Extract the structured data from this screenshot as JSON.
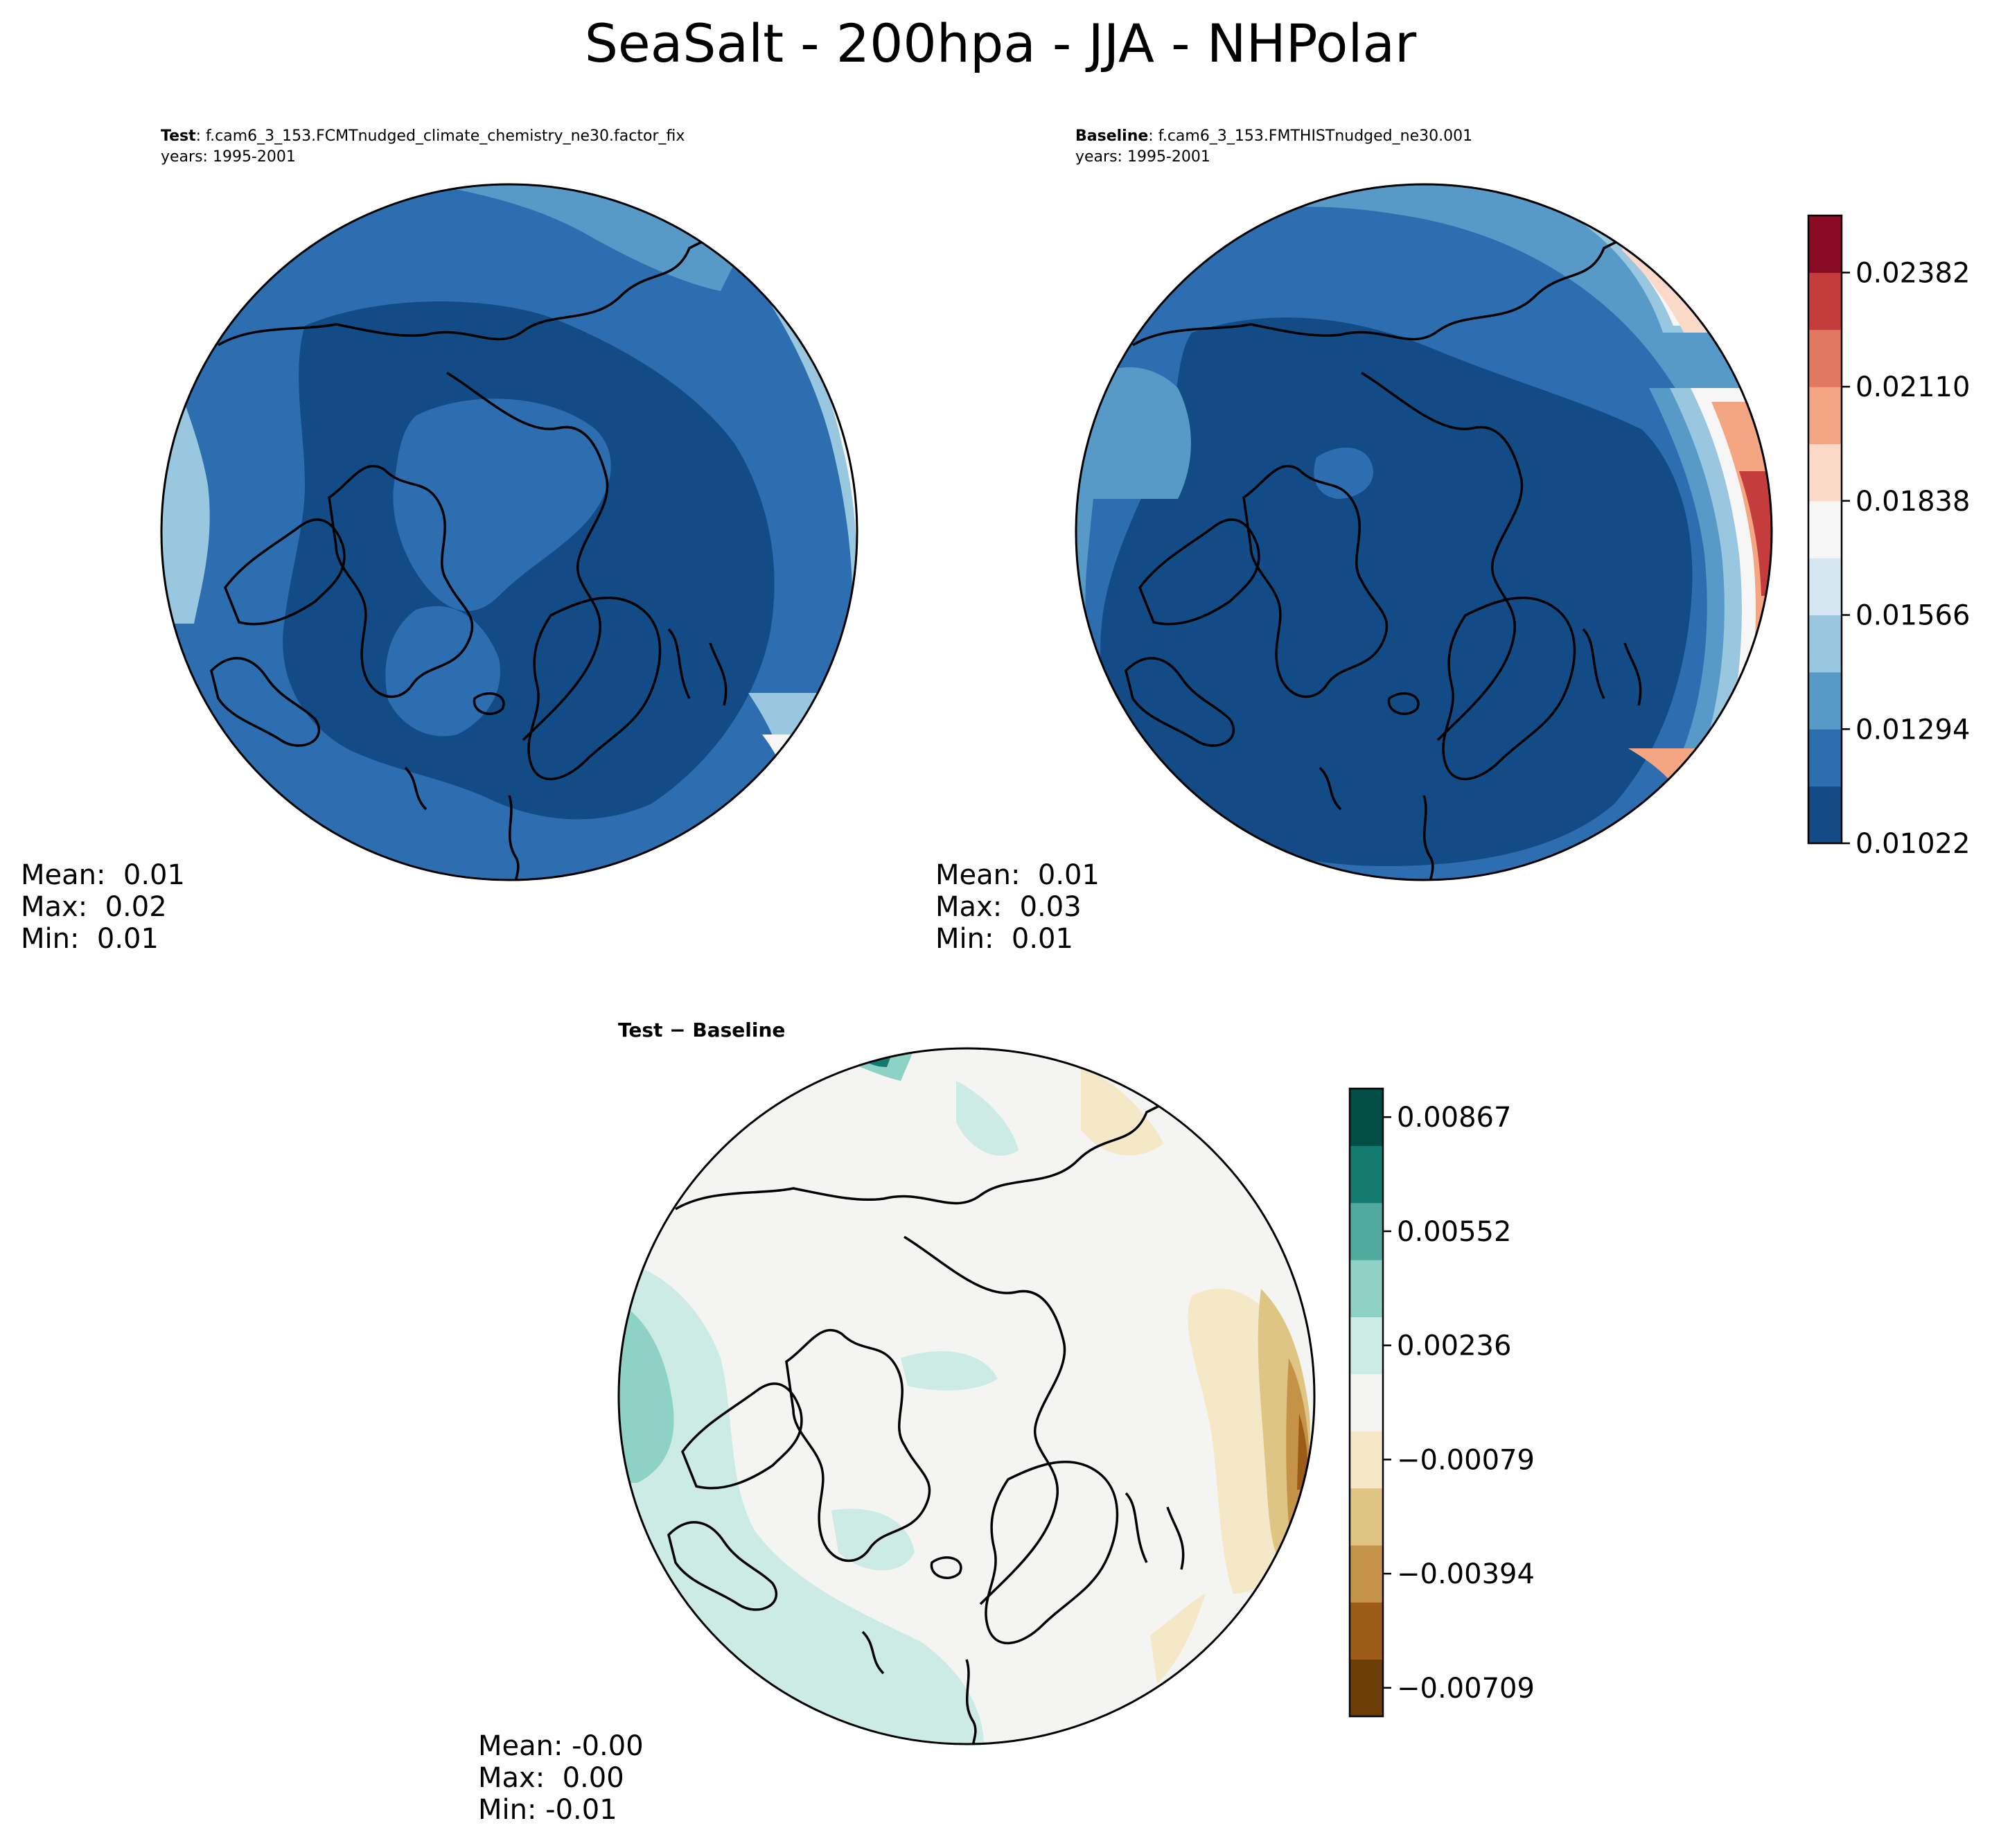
{
  "figure": {
    "title": "SeaSalt - 200hpa - JJA - NHPolar"
  },
  "panels": {
    "test": {
      "label": "Test",
      "case": ": f.cam6_3_153.FCMTnudged_climate_chemistry_ne30.factor_fix",
      "years": "years: 1995-2001",
      "stats": {
        "mean": "Mean:  0.01",
        "max": "Max:  0.02",
        "min": "Min:  0.01"
      }
    },
    "baseline": {
      "label": "Baseline",
      "case": ": f.cam6_3_153.FMTHISTnudged_ne30.001",
      "years": "years: 1995-2001",
      "stats": {
        "mean": "Mean:  0.01",
        "max": "Max:  0.03",
        "min": "Min:  0.01"
      }
    },
    "diff": {
      "label": "Test − Baseline",
      "stats": {
        "mean": "Mean: -0.00",
        "max": "Max:  0.00",
        "min": "Min: -0.01"
      }
    }
  },
  "colorbars": {
    "main": {
      "ticks": [
        "0.01022",
        "0.01294",
        "0.01566",
        "0.01838",
        "0.02110",
        "0.02382"
      ],
      "colors": [
        "#134b87",
        "#2c6eb0",
        "#5799c7",
        "#99c7e0",
        "#d6e7f1",
        "#f6f6f6",
        "#fbd9c9",
        "#f4a582",
        "#e17860",
        "#c53c3d",
        "#8a0b25"
      ]
    },
    "diff": {
      "ticks": [
        "−0.00709",
        "−0.00394",
        "−0.00079",
        "0.00236",
        "0.00552",
        "0.00867"
      ],
      "colors": [
        "#6c3d07",
        "#9c5c17",
        "#c49347",
        "#dfc583",
        "#f4e8c6",
        "#f4f4f3",
        "#cbebe4",
        "#8ed2c5",
        "#4fa99e",
        "#137a70",
        "#024e44"
      ]
    }
  },
  "chart_data": [
    {
      "type": "heatmap",
      "title": "Test: f.cam6_3_153.FCMTnudged_climate_chemistry_ne30.factor_fix",
      "projection": "north polar stereographic",
      "colorbar_range": [
        0.01022,
        0.02518
      ],
      "stats": {
        "mean": 0.01,
        "max": 0.02,
        "min": 0.01
      }
    },
    {
      "type": "heatmap",
      "title": "Baseline: f.cam6_3_153.FMTHISTnudged_ne30.001",
      "projection": "north polar stereographic",
      "colorbar_range": [
        0.01022,
        0.02518
      ],
      "stats": {
        "mean": 0.01,
        "max": 0.03,
        "min": 0.01
      }
    },
    {
      "type": "heatmap",
      "title": "Test − Baseline",
      "projection": "north polar stereographic",
      "colorbar_range": [
        -0.00867,
        0.00867
      ],
      "stats": {
        "mean": -0.0,
        "max": 0.0,
        "min": -0.01
      }
    }
  ]
}
